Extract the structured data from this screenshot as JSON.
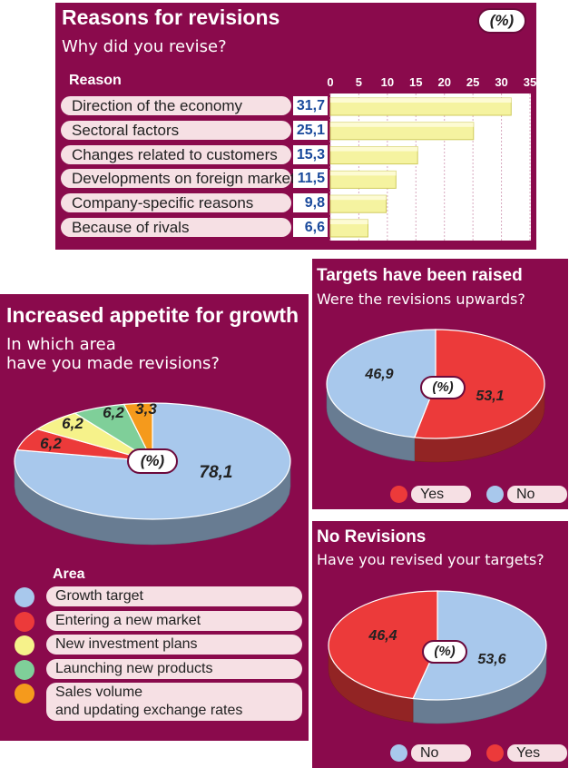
{
  "chart_data": [
    {
      "type": "bar",
      "title": "Reasons for revisions",
      "subtitle": "Why did you revise?",
      "unit_badge": "(%)",
      "column_header": "Reason",
      "categories": [
        "Direction of the economy",
        "Sectoral factors",
        "Changes related to customers",
        "Developments on foreign markets",
        "Company-specific reasons",
        "Because of rivals"
      ],
      "values": [
        31.7,
        25.1,
        15.3,
        11.5,
        9.8,
        6.6
      ],
      "value_labels": [
        "31,7",
        "25,1",
        "15,3",
        "11,5",
        "9,8",
        "6,6"
      ],
      "xlim": [
        0,
        35
      ],
      "x_ticks": [
        "0",
        "5",
        "10",
        "15",
        "20",
        "25",
        "30",
        "35"
      ],
      "bar_color": "#f5f3a0"
    },
    {
      "type": "pie",
      "title": "Increased appetite for growth",
      "subtitle_lines": [
        "In which area",
        "have you made revisions?"
      ],
      "unit_badge": "(%)",
      "legend_title": "Area",
      "legend_lines": [
        [
          "Growth target"
        ],
        [
          "Entering a new market"
        ],
        [
          "New investment plans"
        ],
        [
          "Launching new products"
        ],
        [
          "Sales volume",
          "and updating exchange rates"
        ]
      ],
      "values": [
        78.1,
        6.2,
        6.2,
        6.2,
        3.3
      ],
      "value_labels": [
        "78,1",
        "6,2",
        "6,2",
        "6,2",
        "3,3"
      ],
      "colors": [
        "#a8c8ec",
        "#ec3a3a",
        "#f6f28a",
        "#7fcf99",
        "#f59a1c"
      ]
    },
    {
      "type": "pie",
      "title": "Targets have been raised",
      "subtitle": "Were the revisions upwards?",
      "unit_badge": "(%)",
      "categories": [
        "Yes",
        "No"
      ],
      "values": [
        53.1,
        46.9
      ],
      "value_labels": [
        "53,1",
        "46,9"
      ],
      "colors": [
        "#ec3a3a",
        "#a8c8ec"
      ]
    },
    {
      "type": "pie",
      "title": "No Revisions",
      "subtitle": "Have you revised your targets?",
      "unit_badge": "(%)",
      "categories": [
        "No",
        "Yes"
      ],
      "values": [
        53.6,
        46.4
      ],
      "value_labels": [
        "53,6",
        "46,4"
      ],
      "colors": [
        "#a8c8ec",
        "#ec3a3a"
      ]
    }
  ]
}
